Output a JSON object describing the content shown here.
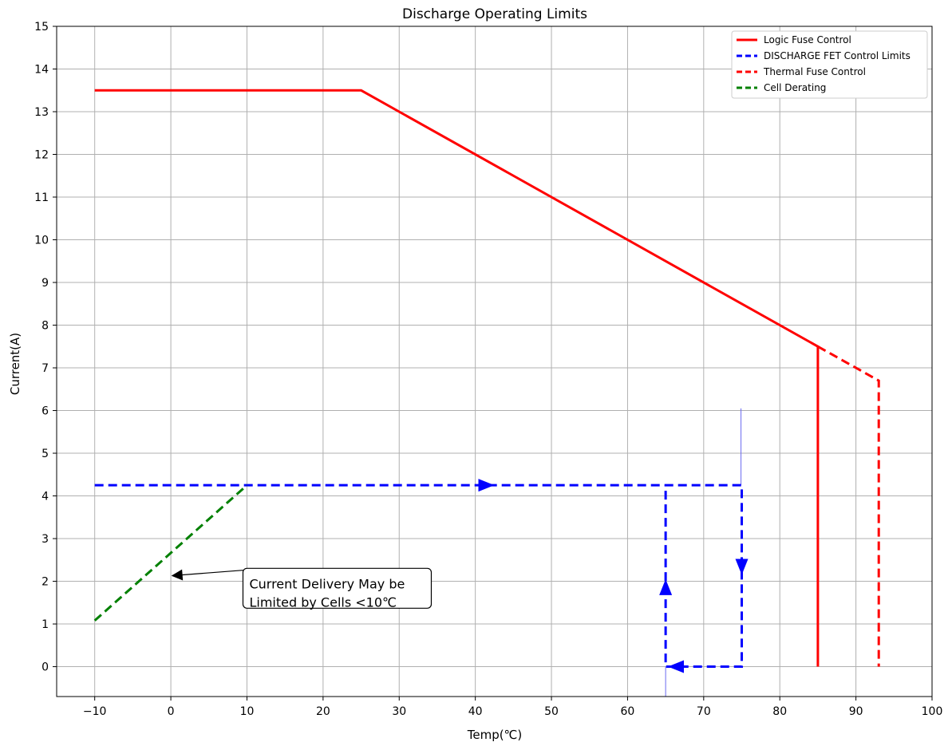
{
  "chart_data": {
    "type": "line",
    "title": "Discharge Operating Limits",
    "xlabel": "Temp(℃)",
    "ylabel": "Current(A)",
    "xlim": [
      -15,
      100
    ],
    "ylim": [
      -0.7,
      15
    ],
    "xticks": [
      -10,
      0,
      10,
      20,
      30,
      40,
      50,
      60,
      70,
      80,
      90,
      100
    ],
    "xtick_labels": [
      "−10",
      "0",
      "10",
      "20",
      "30",
      "40",
      "50",
      "60",
      "70",
      "80",
      "90",
      "100"
    ],
    "yticks": [
      0,
      1,
      2,
      3,
      4,
      5,
      6,
      7,
      8,
      9,
      10,
      11,
      12,
      13,
      14,
      15
    ],
    "ytick_labels": [
      "0",
      "1",
      "2",
      "3",
      "4",
      "5",
      "6",
      "7",
      "8",
      "9",
      "10",
      "11",
      "12",
      "13",
      "14",
      "15"
    ],
    "grid": true,
    "legend_position": "top-right",
    "series": [
      {
        "name": "Logic Fuse Control",
        "color": "#ff0000",
        "style": "solid",
        "x": [
          -10,
          25,
          85,
          85
        ],
        "y": [
          13.5,
          13.5,
          7.5,
          0
        ]
      },
      {
        "name": "DISCHARGE FET Control Limits",
        "color": "#0000ff",
        "style": "dashed",
        "x": [
          -10,
          75,
          75,
          65,
          65
        ],
        "y": [
          4.25,
          4.25,
          0,
          0,
          4.25
        ]
      },
      {
        "name": "Thermal Fuse Control",
        "color": "#ff0000",
        "style": "dashed",
        "x": [
          85,
          93,
          93
        ],
        "y": [
          7.5,
          6.7,
          0
        ]
      },
      {
        "name": "Cell Derating",
        "color": "#008000",
        "style": "dashed",
        "x": [
          -10,
          10
        ],
        "y": [
          1.08,
          4.25
        ]
      }
    ],
    "arrows": [
      {
        "x1": 40,
        "y1": 4.25,
        "x2": 42.5,
        "y2": 4.25
      },
      {
        "x1": 75,
        "y1": 2.7,
        "x2": 75,
        "y2": 2.15
      },
      {
        "x1": 68,
        "y1": 0,
        "x2": 65.3,
        "y2": 0
      },
      {
        "x1": 65,
        "y1": 1.3,
        "x2": 65,
        "y2": 2.05
      }
    ],
    "thin_lines": [
      {
        "x": 65,
        "y1": -0.7,
        "y2": 0
      },
      {
        "x": 74.9,
        "y1": 4.25,
        "y2": 6.05
      }
    ],
    "annotation": {
      "lines": [
        "Current Delivery May be",
        "Limited by Cells <10℃"
      ],
      "text_x": 10,
      "text_y": 1.5,
      "arrow_x": 0,
      "arrow_y": 2.15
    }
  }
}
